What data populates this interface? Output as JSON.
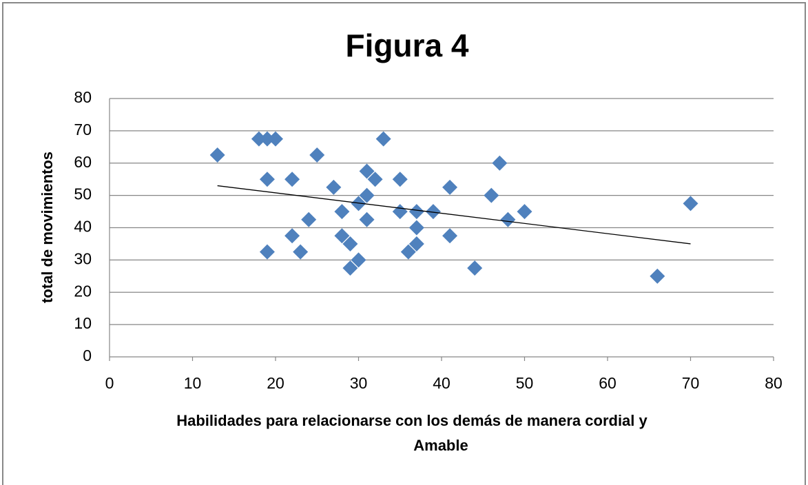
{
  "chart_data": {
    "type": "scatter",
    "title": "Figura 4",
    "x_label": [
      "Habilidades para relacionarse con los demás de manera cordial y",
      "Amable"
    ],
    "y_label": "total de movimientos",
    "color": "#4f81bd",
    "x": [
      13,
      18,
      19,
      20,
      19,
      22,
      25,
      19,
      22,
      23,
      24,
      27,
      28,
      28,
      29,
      29,
      30,
      30,
      31,
      31,
      32,
      31,
      33,
      35,
      35,
      36,
      37,
      37,
      37,
      39,
      41,
      41,
      44,
      46,
      47,
      48,
      50,
      66,
      70
    ],
    "y": [
      62.5,
      67.5,
      67.5,
      67.5,
      55,
      55,
      62.5,
      32.5,
      37.5,
      32.5,
      42.5,
      52.5,
      45,
      37.5,
      35,
      27.5,
      30,
      47.5,
      50,
      57.5,
      55,
      42.5,
      67.5,
      55,
      45,
      32.5,
      35,
      40,
      45,
      45,
      52.5,
      37.5,
      27.5,
      50,
      60,
      42.5,
      45,
      25,
      47.5
    ],
    "trendline": {
      "x": [
        13,
        70
      ],
      "y": [
        53,
        35
      ],
      "color": "#000000"
    },
    "xlim": [
      0,
      80
    ],
    "xticks": [
      0,
      10,
      20,
      30,
      40,
      50,
      60,
      70,
      80
    ],
    "ylim": [
      0,
      80
    ],
    "yticks": [
      0,
      10,
      20,
      30,
      40,
      50,
      60,
      70,
      80
    ],
    "grid": true
  }
}
